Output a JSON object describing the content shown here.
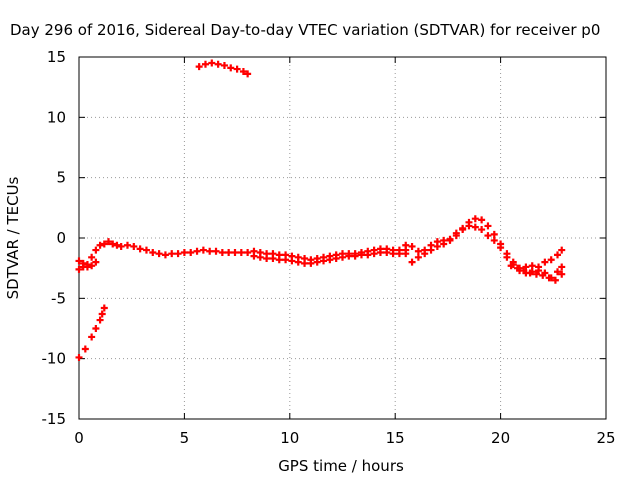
{
  "chart_data": {
    "type": "scatter",
    "title": "Day 296 of 2016, Sidereal Day-to-day VTEC variation (SDTVAR) for receiver p0",
    "xlabel": "GPS time / hours",
    "ylabel": "SDTVAR / TECUs",
    "xlim": [
      0,
      25
    ],
    "ylim": [
      -15,
      15
    ],
    "xticks": [
      0,
      5,
      10,
      15,
      20,
      25
    ],
    "yticks": [
      -15,
      -10,
      -5,
      0,
      5,
      10,
      15
    ],
    "grid": true,
    "legend": "none",
    "color": "#ff0000",
    "marker": "plus",
    "series": [
      {
        "x": [
          0.0,
          0.3,
          0.6,
          0.8,
          1.0,
          1.1,
          1.2
        ],
        "y": [
          -9.9,
          -9.2,
          -8.2,
          -7.5,
          -6.8,
          -6.3,
          -5.8
        ]
      },
      {
        "x": [
          0.0,
          0.2,
          0.4,
          0.6,
          0.8,
          1.0,
          1.2,
          1.4,
          1.6,
          1.8,
          2.0,
          2.3,
          2.6,
          2.9,
          3.2,
          3.5,
          3.8,
          4.1,
          4.4,
          4.7,
          5.0,
          5.3,
          5.6,
          5.9,
          6.2,
          6.5,
          6.8,
          7.1,
          7.4,
          7.7,
          8.0
        ],
        "y": [
          -2.6,
          -2.4,
          -2.2,
          -1.6,
          -1.0,
          -0.6,
          -0.5,
          -0.3,
          -0.5,
          -0.6,
          -0.7,
          -0.6,
          -0.7,
          -0.9,
          -1.0,
          -1.2,
          -1.3,
          -1.4,
          -1.3,
          -1.3,
          -1.2,
          -1.2,
          -1.1,
          -1.0,
          -1.1,
          -1.1,
          -1.2,
          -1.2,
          -1.2,
          -1.2,
          -1.2
        ]
      },
      {
        "x": [
          0.0,
          0.2,
          0.4,
          0.6,
          0.8
        ],
        "y": [
          -1.9,
          -2.1,
          -2.4,
          -2.3,
          -2.0
        ]
      },
      {
        "x": [
          5.7,
          6.0,
          6.3,
          6.6,
          6.9,
          7.2,
          7.5,
          7.8,
          8.0
        ],
        "y": [
          14.2,
          14.4,
          14.5,
          14.4,
          14.3,
          14.1,
          14.0,
          13.8,
          13.6
        ]
      },
      {
        "x": [
          8.3,
          8.6,
          8.9,
          9.2,
          9.5,
          9.8,
          10.1,
          10.4,
          10.7,
          11.0,
          11.3,
          11.6,
          11.9,
          12.2,
          12.5,
          12.8,
          13.1,
          13.4,
          13.7,
          14.0,
          14.3,
          14.6,
          14.9,
          15.2,
          15.5
        ],
        "y": [
          -1.1,
          -1.2,
          -1.3,
          -1.3,
          -1.4,
          -1.4,
          -1.5,
          -1.6,
          -1.7,
          -1.8,
          -1.7,
          -1.6,
          -1.5,
          -1.4,
          -1.3,
          -1.3,
          -1.3,
          -1.2,
          -1.1,
          -1.0,
          -0.9,
          -0.9,
          -1.0,
          -1.0,
          -1.0
        ]
      },
      {
        "x": [
          8.3,
          8.6,
          8.9,
          9.2,
          9.5,
          9.8,
          10.1,
          10.4,
          10.7,
          11.0,
          11.3,
          11.6,
          11.9,
          12.2,
          12.5,
          12.8,
          13.1,
          13.4,
          13.7,
          14.0,
          14.3,
          14.6,
          14.9,
          15.2,
          15.5
        ],
        "y": [
          -1.5,
          -1.6,
          -1.7,
          -1.7,
          -1.8,
          -1.8,
          -1.9,
          -2.0,
          -2.1,
          -2.1,
          -2.0,
          -1.9,
          -1.8,
          -1.7,
          -1.6,
          -1.5,
          -1.5,
          -1.4,
          -1.4,
          -1.3,
          -1.2,
          -1.2,
          -1.3,
          -1.3,
          -1.3
        ]
      },
      {
        "x": [
          15.5,
          15.8,
          16.1,
          16.4,
          16.7,
          17.0,
          17.3,
          17.6,
          17.9,
          18.2,
          18.5,
          18.8,
          19.1,
          19.4,
          19.7,
          20.0,
          20.3,
          20.6,
          20.9,
          21.2,
          21.5,
          21.8,
          22.1,
          22.4,
          22.7,
          22.9
        ],
        "y": [
          -0.6,
          -0.7,
          -1.1,
          -1.0,
          -0.6,
          -0.3,
          -0.2,
          -0.1,
          0.4,
          0.8,
          1.0,
          0.9,
          0.7,
          0.2,
          -0.2,
          -0.8,
          -1.6,
          -2.2,
          -2.5,
          -2.4,
          -2.3,
          -2.4,
          -2.0,
          -1.8,
          -1.4,
          -1.0
        ]
      },
      {
        "x": [
          15.8,
          16.1,
          16.4,
          16.7,
          17.0,
          17.3,
          17.6,
          17.9,
          18.2,
          18.5,
          18.8,
          19.1,
          19.4,
          19.7,
          20.0,
          20.3,
          20.6,
          20.9,
          21.2,
          21.5,
          21.8,
          22.1,
          22.4,
          22.7,
          22.9
        ],
        "y": [
          -2.0,
          -1.6,
          -1.3,
          -1.0,
          -0.7,
          -0.5,
          -0.2,
          0.2,
          0.7,
          1.3,
          1.6,
          1.5,
          1.0,
          0.3,
          -0.5,
          -1.3,
          -2.0,
          -2.7,
          -2.9,
          -2.8,
          -2.7,
          -2.9,
          -3.3,
          -2.8,
          -2.4
        ]
      },
      {
        "x": [
          20.5,
          20.8,
          21.1,
          21.4,
          21.7,
          22.0,
          22.3,
          22.6,
          22.9
        ],
        "y": [
          -2.3,
          -2.5,
          -2.7,
          -2.9,
          -3.0,
          -3.1,
          -3.3,
          -3.5,
          -3.0
        ]
      }
    ]
  }
}
